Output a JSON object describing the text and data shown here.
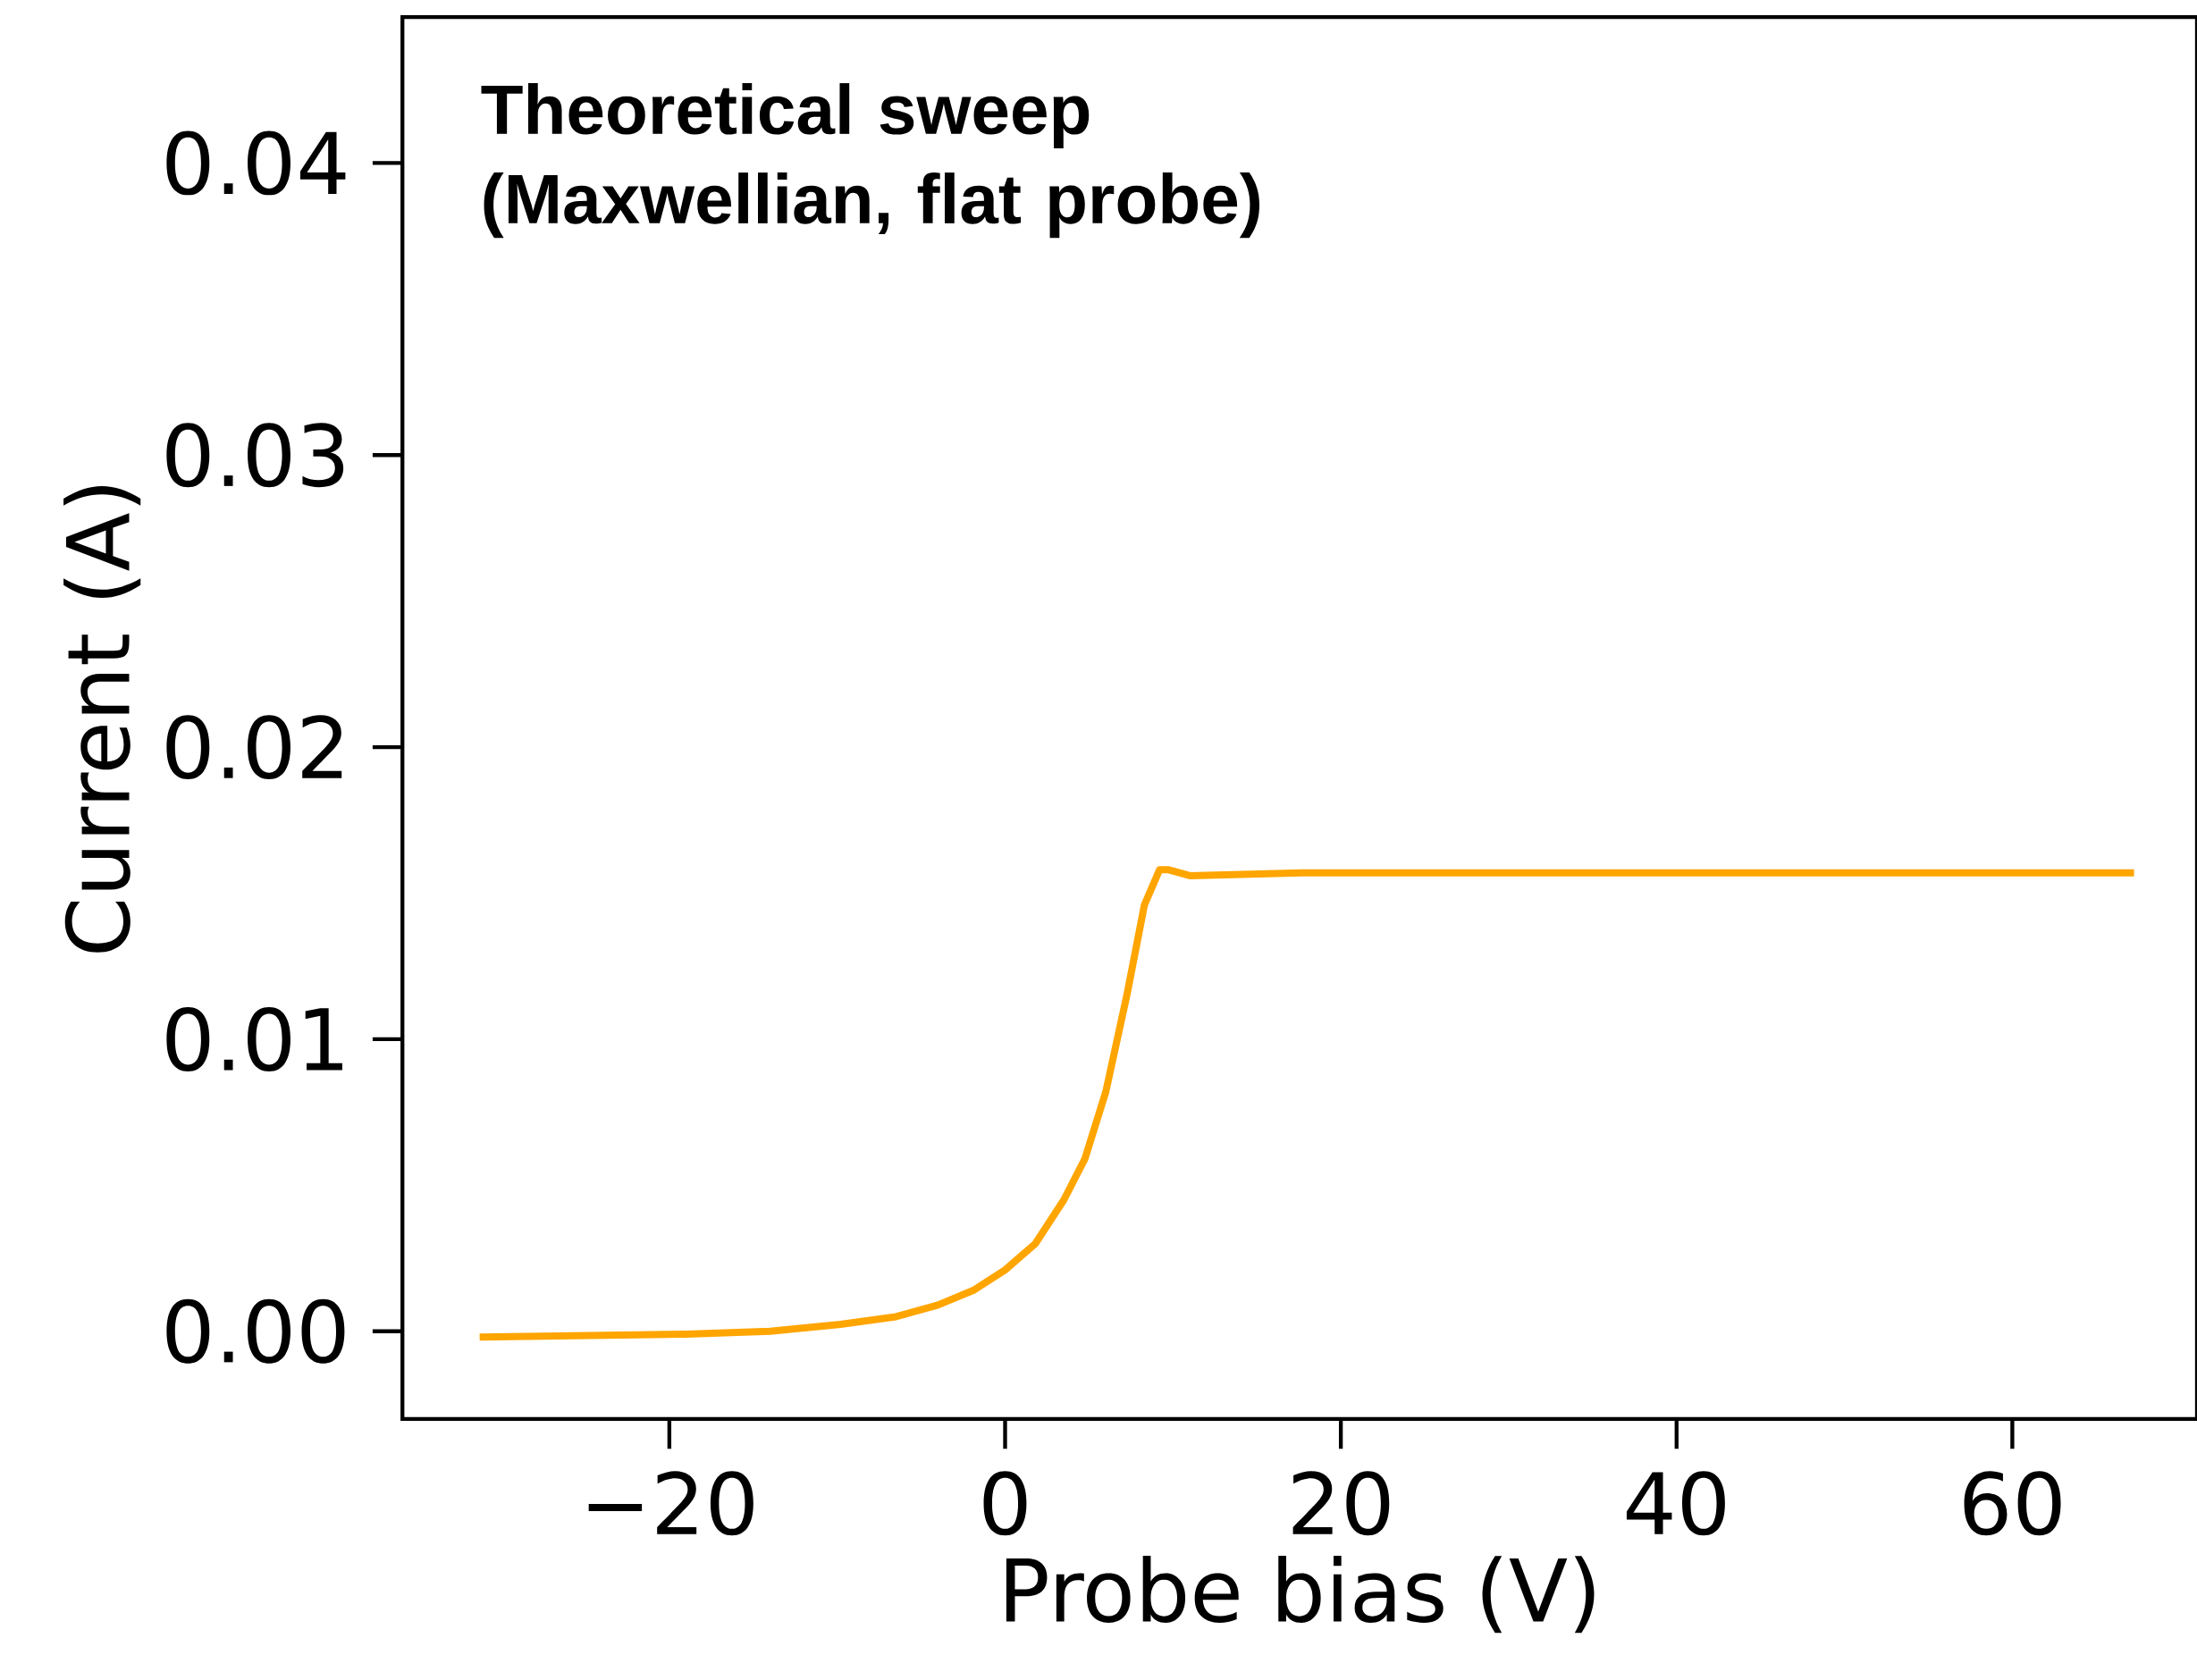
{
  "chart_data": {
    "type": "line",
    "xlabel": "Probe bias (V)",
    "ylabel": "Current (A)",
    "annotations": [
      "Theoretical sweep (Maxwellian, flat probe)"
    ],
    "x": [
      -31.3,
      -19,
      -14,
      -9.8,
      -6.5,
      -4,
      -1.9,
      0,
      1.8,
      3.5,
      4.75,
      6,
      7.25,
      8.3,
      9.2,
      9.75,
      11,
      17.7,
      67.25
    ],
    "series": [
      {
        "color": "#ffa500",
        "values": [
          -0.0002,
          -0.0001,
          0.0,
          0.00024,
          0.0005,
          0.0009,
          0.0014,
          0.0021,
          0.003,
          0.0045,
          0.0059,
          0.0082,
          0.0115,
          0.0146,
          0.0158,
          0.0158,
          0.0156,
          0.0157,
          0.0157
        ]
      }
    ],
    "xlim": [
      -35.9,
      71
    ],
    "ylim": [
      -0.003,
      0.045
    ],
    "xticks": [
      {
        "value": -20,
        "label": "−20"
      },
      0,
      20,
      40,
      60
    ],
    "yticks": [
      {
        "value": 0,
        "label": "0.00"
      },
      {
        "value": 0.01,
        "label": "0.01"
      },
      {
        "value": 0.02,
        "label": "0.02"
      },
      {
        "value": 0.03,
        "label": "0.03"
      },
      {
        "value": 0.04,
        "label": "0.04"
      }
    ],
    "grid": false,
    "marker": "none",
    "line_style": "solid"
  }
}
